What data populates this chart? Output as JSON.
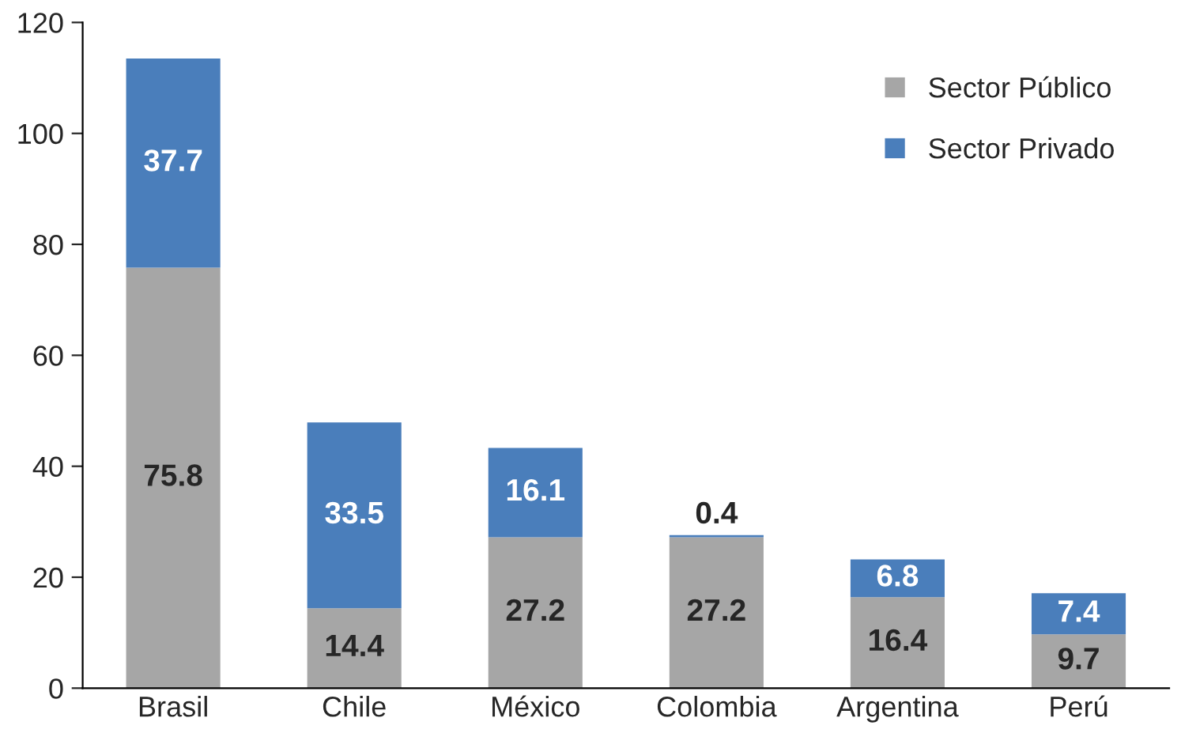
{
  "chart_data": {
    "type": "bar",
    "stacked": true,
    "categories": [
      "Brasil",
      "Chile",
      "México",
      "Colombia",
      "Argentina",
      "Perú"
    ],
    "series": [
      {
        "name": "Sector Público",
        "color": "#a6a6a6",
        "values": [
          75.8,
          14.4,
          27.2,
          27.2,
          16.4,
          9.7
        ]
      },
      {
        "name": "Sector Privado",
        "color": "#4a7ebb",
        "values": [
          37.7,
          33.5,
          16.1,
          0.4,
          6.8,
          7.4
        ]
      }
    ],
    "ylim": [
      0,
      120
    ],
    "yticks": [
      0,
      20,
      40,
      60,
      80,
      100,
      120
    ],
    "data_labels": true,
    "legend": "top right",
    "grid": false
  }
}
